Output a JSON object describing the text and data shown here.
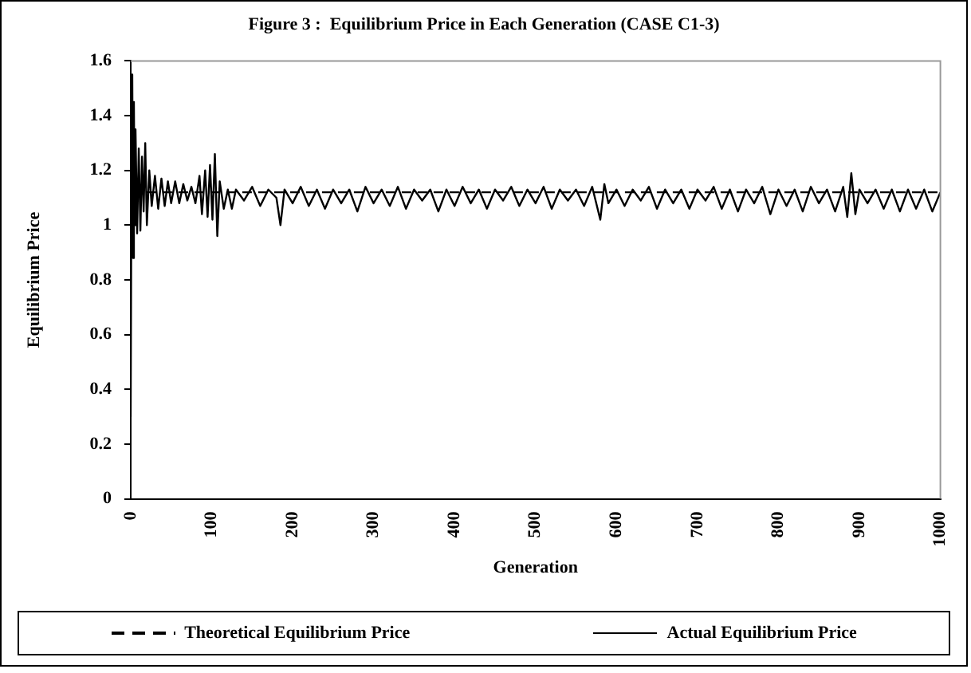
{
  "chart_data": {
    "type": "line",
    "title": "Figure 3 :  Equilibrium Price in Each Generation (CASE C1-3)",
    "xlabel": "Generation",
    "ylabel": "Equilibrium Price",
    "xlim": [
      0,
      1000
    ],
    "xticks": [
      0,
      100,
      200,
      300,
      400,
      500,
      600,
      700,
      800,
      900,
      1000
    ],
    "ylim": [
      0,
      1.6
    ],
    "yticks": [
      0,
      0.2,
      0.4,
      0.6,
      0.8,
      1,
      1.2,
      1.4,
      1.6
    ],
    "grid": false,
    "legend": "bottom",
    "marker": "none",
    "series": [
      {
        "name": "Theoretical Equilibrium Price",
        "color": "#000000",
        "line_style": "dashed",
        "x": [
          0,
          1000
        ],
        "values": [
          1.12,
          1.12
        ]
      },
      {
        "name": "Actual Equilibrium Price",
        "color": "#000000",
        "line_style": "solid",
        "x": [
          0,
          1,
          2,
          3,
          4,
          5,
          6,
          8,
          10,
          12,
          14,
          16,
          18,
          20,
          23,
          26,
          30,
          34,
          38,
          42,
          46,
          50,
          55,
          60,
          65,
          70,
          75,
          80,
          85,
          88,
          92,
          95,
          98,
          101,
          104,
          107,
          110,
          115,
          120,
          125,
          130,
          140,
          150,
          160,
          170,
          180,
          185,
          190,
          200,
          210,
          220,
          230,
          240,
          250,
          260,
          270,
          280,
          290,
          300,
          310,
          320,
          330,
          340,
          350,
          360,
          370,
          380,
          390,
          400,
          410,
          420,
          430,
          440,
          450,
          460,
          470,
          480,
          490,
          500,
          510,
          520,
          530,
          540,
          550,
          560,
          570,
          580,
          585,
          590,
          600,
          610,
          620,
          630,
          640,
          650,
          660,
          670,
          680,
          690,
          700,
          710,
          720,
          730,
          740,
          750,
          760,
          770,
          780,
          790,
          800,
          810,
          820,
          830,
          840,
          850,
          860,
          870,
          880,
          885,
          890,
          895,
          900,
          910,
          920,
          930,
          940,
          950,
          960,
          970,
          980,
          990,
          1000
        ],
        "values": [
          0.3,
          1.2,
          1.55,
          0.88,
          1.45,
          1.0,
          1.35,
          0.97,
          1.28,
          0.98,
          1.25,
          1.05,
          1.3,
          1.0,
          1.2,
          1.07,
          1.18,
          1.06,
          1.17,
          1.07,
          1.16,
          1.08,
          1.16,
          1.08,
          1.15,
          1.09,
          1.14,
          1.08,
          1.18,
          1.04,
          1.2,
          1.03,
          1.22,
          1.02,
          1.26,
          0.96,
          1.16,
          1.06,
          1.13,
          1.06,
          1.13,
          1.09,
          1.14,
          1.07,
          1.13,
          1.1,
          1.0,
          1.13,
          1.08,
          1.14,
          1.07,
          1.13,
          1.06,
          1.13,
          1.08,
          1.13,
          1.05,
          1.14,
          1.08,
          1.13,
          1.07,
          1.14,
          1.06,
          1.13,
          1.09,
          1.13,
          1.05,
          1.13,
          1.07,
          1.14,
          1.08,
          1.13,
          1.06,
          1.13,
          1.09,
          1.14,
          1.07,
          1.13,
          1.08,
          1.14,
          1.06,
          1.13,
          1.09,
          1.13,
          1.07,
          1.14,
          1.02,
          1.15,
          1.08,
          1.13,
          1.07,
          1.13,
          1.09,
          1.14,
          1.06,
          1.13,
          1.08,
          1.13,
          1.06,
          1.13,
          1.09,
          1.14,
          1.06,
          1.13,
          1.05,
          1.13,
          1.08,
          1.14,
          1.04,
          1.13,
          1.07,
          1.13,
          1.05,
          1.14,
          1.08,
          1.13,
          1.05,
          1.14,
          1.03,
          1.19,
          1.04,
          1.13,
          1.08,
          1.13,
          1.06,
          1.13,
          1.05,
          1.13,
          1.06,
          1.13,
          1.05,
          1.12
        ]
      }
    ]
  }
}
